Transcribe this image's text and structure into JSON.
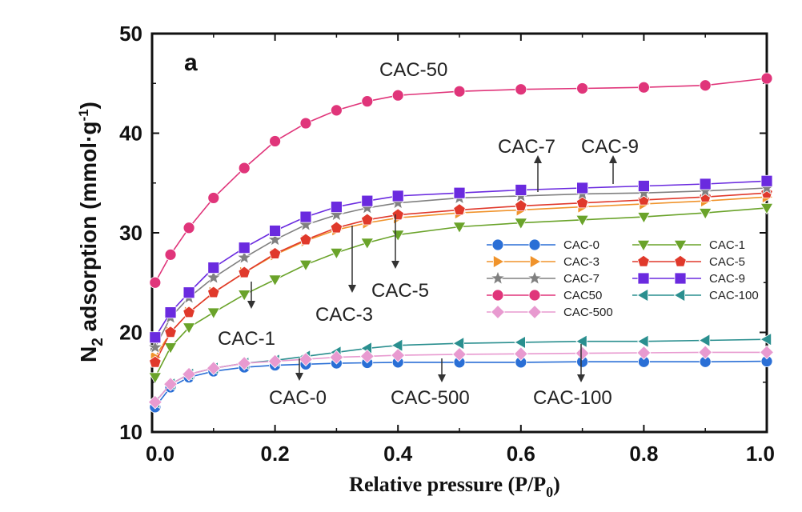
{
  "chart_data": {
    "type": "line",
    "panel_label": "a",
    "xlabel": "Relative pressure (P/P",
    "xlabel_sub": "0",
    "xlabel_tail": ")",
    "ylabel_main": "N",
    "ylabel_sub": "2",
    "ylabel_rest": " adsorption (mmol·g",
    "ylabel_sup": "-1",
    "ylabel_end": ")",
    "xlim": [
      0.0,
      1.0
    ],
    "ylim": [
      10,
      50
    ],
    "xticks": [
      "0.0",
      "0.2",
      "0.4",
      "0.6",
      "0.8",
      "1.0"
    ],
    "yticks": [
      "10",
      "20",
      "30",
      "40",
      "50"
    ],
    "x": [
      0.005,
      0.03,
      0.06,
      0.1,
      0.15,
      0.2,
      0.25,
      0.3,
      0.35,
      0.4,
      0.5,
      0.6,
      0.7,
      0.8,
      0.9,
      1.0
    ],
    "series": [
      {
        "name": "CAC-0",
        "color": "#2a6fd6",
        "marker": "circle",
        "values": [
          12.5,
          14.5,
          15.5,
          16.1,
          16.5,
          16.7,
          16.8,
          16.9,
          16.95,
          17.0,
          17.0,
          17.0,
          17.05,
          17.05,
          17.05,
          17.1
        ]
      },
      {
        "name": "CAC-1",
        "color": "#6aa32a",
        "marker": "triangle-down",
        "values": [
          15.5,
          18.5,
          20.5,
          22.0,
          23.8,
          25.3,
          26.8,
          28.0,
          29.0,
          29.8,
          30.6,
          31.0,
          31.3,
          31.6,
          32.0,
          32.5
        ]
      },
      {
        "name": "CAC-3",
        "color": "#f0932b",
        "marker": "triangle-right",
        "values": [
          17.5,
          20.0,
          22.0,
          24.0,
          26.0,
          27.8,
          29.2,
          30.3,
          31.0,
          31.5,
          32.0,
          32.3,
          32.6,
          32.9,
          33.2,
          33.6
        ]
      },
      {
        "name": "CAC-5",
        "color": "#e0392b",
        "marker": "pentagon",
        "values": [
          17.0,
          20.0,
          22.0,
          24.0,
          26.0,
          27.9,
          29.3,
          30.5,
          31.3,
          31.8,
          32.3,
          32.7,
          33.0,
          33.3,
          33.6,
          34.0
        ]
      },
      {
        "name": "CAC-7",
        "color": "#808080",
        "marker": "star",
        "values": [
          18.5,
          21.5,
          23.5,
          25.5,
          27.5,
          29.3,
          30.8,
          31.8,
          32.5,
          33.0,
          33.5,
          33.7,
          33.9,
          34.0,
          34.2,
          34.5
        ]
      },
      {
        "name": "CAC-9",
        "color": "#6a2adf",
        "marker": "square",
        "values": [
          19.5,
          22.0,
          24.0,
          26.5,
          28.5,
          30.2,
          31.6,
          32.6,
          33.2,
          33.7,
          34.0,
          34.3,
          34.5,
          34.7,
          34.9,
          35.2
        ]
      },
      {
        "name": "CAC50",
        "color": "#e0357a",
        "marker": "circle",
        "values": [
          25.0,
          27.8,
          30.5,
          33.5,
          36.5,
          39.2,
          41.0,
          42.3,
          43.2,
          43.8,
          44.2,
          44.4,
          44.5,
          44.6,
          44.8,
          45.5
        ]
      },
      {
        "name": "CAC-100",
        "color": "#2a8f8f",
        "marker": "triangle-left",
        "values": [
          13.0,
          14.8,
          15.8,
          16.4,
          16.9,
          17.2,
          17.6,
          18.0,
          18.4,
          18.7,
          18.9,
          19.0,
          19.1,
          19.1,
          19.2,
          19.3
        ]
      },
      {
        "name": "CAC-500",
        "color": "#e89ad0",
        "marker": "diamond",
        "values": [
          13.0,
          14.8,
          15.8,
          16.4,
          16.9,
          17.1,
          17.3,
          17.5,
          17.6,
          17.7,
          17.8,
          17.85,
          17.9,
          17.95,
          18.0,
          18.0
        ]
      }
    ],
    "legend": {
      "placement": "center-right",
      "entries": [
        "CAC-0",
        "CAC-1",
        "CAC-3",
        "CAC-5",
        "CAC-7",
        "CAC-9",
        "CAC50",
        "CAC-100",
        "CAC-500"
      ]
    },
    "annotations": {
      "cac50": "CAC-50",
      "cac7": "CAC-7",
      "cac9": "CAC-9",
      "cac5": "CAC-5",
      "cac3": "CAC-3",
      "cac1": "CAC-1",
      "cac0": "CAC-0",
      "cac500": "CAC-500",
      "cac100": "CAC-100"
    }
  }
}
